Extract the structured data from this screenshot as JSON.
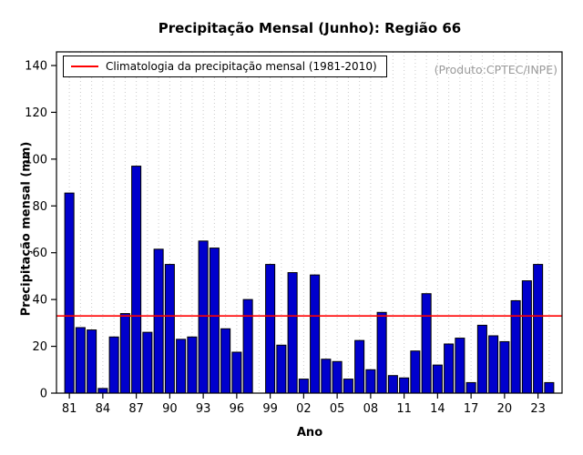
{
  "title": "Precipitação Mensal (Junho): Região 66",
  "legend": {
    "label": "Climatologia da precipitação mensal (1981-2010)"
  },
  "produto": "(Produto:CPTEC/INPE)",
  "chart_data": {
    "type": "bar",
    "title": "Precipitação Mensal (Junho): Região 66",
    "xlabel": "Ano",
    "ylabel": "Precipitação mensal (mm)",
    "ylim": [
      0,
      145
    ],
    "yticks": [
      0,
      20,
      40,
      60,
      80,
      100,
      120,
      140
    ],
    "xtick_years": [
      1981,
      1984,
      1987,
      1990,
      1993,
      1996,
      1999,
      2002,
      2005,
      2008,
      2011,
      2014,
      2017,
      2020,
      2023
    ],
    "xtick_labels": [
      "81",
      "84",
      "87",
      "90",
      "93",
      "96",
      "99",
      "02",
      "05",
      "08",
      "11",
      "14",
      "17",
      "20",
      "23"
    ],
    "years": [
      1981,
      1982,
      1983,
      1984,
      1985,
      1986,
      1987,
      1988,
      1989,
      1990,
      1991,
      1992,
      1993,
      1994,
      1995,
      1996,
      1997,
      1998,
      1999,
      2000,
      2001,
      2002,
      2003,
      2004,
      2005,
      2006,
      2007,
      2008,
      2009,
      2010,
      2011,
      2012,
      2013,
      2014,
      2015,
      2016,
      2017,
      2018,
      2019,
      2020,
      2021,
      2022,
      2023,
      2024
    ],
    "values": [
      85.5,
      28,
      27,
      2,
      24,
      34,
      97,
      26,
      61.5,
      55,
      23,
      24,
      65,
      62,
      27.5,
      17.5,
      40,
      null,
      55,
      20.5,
      51.5,
      6,
      50.5,
      14.5,
      13.5,
      6,
      22.5,
      10,
      34.5,
      7.5,
      6.5,
      18,
      42.5,
      12,
      21,
      23.5,
      4.5,
      29,
      24.5,
      22,
      39.5,
      48,
      55,
      4.5
    ],
    "climatology": 33,
    "grid": "dotted-vertical",
    "legend_position": "top-left",
    "colors": {
      "bar": "#0000cd",
      "bar_border": "#000000",
      "climatology_line": "#ff0000",
      "grid": "#c9c9c9",
      "axis": "#000000",
      "produto_text": "#9a9a9a"
    }
  }
}
